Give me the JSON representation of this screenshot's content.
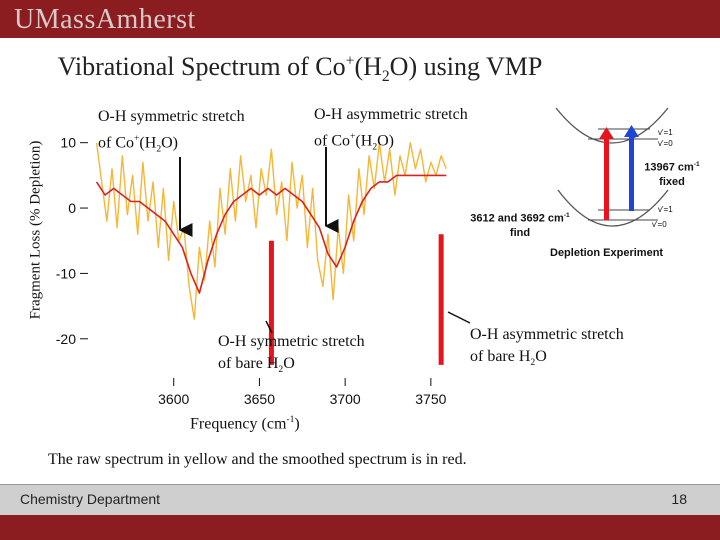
{
  "header": {
    "logo_text": "UMassAmherst"
  },
  "slide": {
    "title_pre": "Vibrational Spectrum of Co",
    "title_sup": "+",
    "title_mid": "(H",
    "title_sub": "2",
    "title_post": "O) using VMP",
    "caption": "The raw spectrum in yellow and the smoothed spectrum is in red."
  },
  "annotations": {
    "sym_complex_line1": "O-H symmetric stretch",
    "sym_complex_line2_pre": "of Co",
    "sym_complex_line2_sup": "+",
    "sym_complex_line2_mid": "(H",
    "sym_complex_line2_sub": "2",
    "sym_complex_line2_post": "O)",
    "asym_complex_line1": "O-H asymmetric stretch",
    "asym_complex_line2_pre": "of Co",
    "asym_complex_line2_sup": "+",
    "asym_complex_line2_mid": "(H",
    "asym_complex_line2_sub": "2",
    "asym_complex_line2_post": "O)",
    "sym_bare_line1": "O-H symmetric stretch",
    "sym_bare_line2_pre": "of bare H",
    "sym_bare_line2_sub": "2",
    "sym_bare_line2_post": "O",
    "asym_bare_line1": "O-H asymmetric stretch",
    "asym_bare_line2_pre": "of bare H",
    "asym_bare_line2_sub": "2",
    "asym_bare_line2_post": "O"
  },
  "diagram": {
    "level_upper_v1": "v'=1",
    "level_upper_v0": "v'=0",
    "level_lower_v1": "v'=1",
    "level_lower_v0": "v'=0",
    "photon_label_pre": "13967 cm",
    "photon_label_sup": "-1",
    "photon_label_post": "fixed",
    "ir_label_pre": "3612 and 3692 cm",
    "ir_label_sup": "-1",
    "ir_label_post": "find",
    "experiment_label": "Depletion Experiment",
    "colors": {
      "red_arrow": "#e8141b",
      "blue_arrow": "#1e46d6",
      "curve": "#555555"
    }
  },
  "chart_data": {
    "type": "line",
    "xlabel_pre": "Frequency (cm",
    "xlabel_sup": "-1",
    "xlabel_post": ")",
    "ylabel": "Fragment Loss (% Depletion)",
    "xlim": [
      3550,
      3760
    ],
    "ylim": [
      -26,
      15
    ],
    "xticks": [
      3600,
      3650,
      3700,
      3750
    ],
    "yticks": [
      10,
      0,
      -10,
      -20
    ],
    "series": [
      {
        "role": "raw",
        "color": "#f6b636",
        "x": [
          3555,
          3558,
          3561,
          3564,
          3567,
          3570,
          3573,
          3576,
          3579,
          3582,
          3585,
          3588,
          3591,
          3594,
          3597,
          3600,
          3603,
          3606,
          3609,
          3612,
          3615,
          3618,
          3621,
          3624,
          3627,
          3630,
          3633,
          3636,
          3639,
          3642,
          3645,
          3648,
          3651,
          3654,
          3657,
          3660,
          3663,
          3666,
          3669,
          3672,
          3675,
          3678,
          3681,
          3684,
          3687,
          3690,
          3693,
          3696,
          3699,
          3702,
          3705,
          3708,
          3711,
          3714,
          3717,
          3720,
          3723,
          3726,
          3729,
          3732,
          3735,
          3738,
          3741,
          3744,
          3747,
          3750,
          3753,
          3756,
          3759
        ],
        "y": [
          10,
          4,
          -2,
          6,
          -3,
          8,
          -1,
          5,
          -4,
          7,
          -2,
          4,
          -6,
          3,
          -8,
          1,
          -5,
          -3,
          -12,
          -17,
          -6,
          -11,
          -2,
          -9,
          3,
          -4,
          6,
          -2,
          8,
          1,
          5,
          -3,
          6,
          2,
          9,
          -1,
          4,
          -5,
          7,
          0,
          5,
          -6,
          3,
          -8,
          -12,
          -4,
          -14,
          -3,
          -10,
          2,
          -5,
          6,
          -1,
          8,
          3,
          10,
          4,
          9,
          2,
          8,
          5,
          10,
          6,
          9,
          4,
          7,
          5,
          8,
          6
        ]
      },
      {
        "role": "smoothed",
        "color": "#d9231f",
        "x": [
          3555,
          3560,
          3565,
          3570,
          3575,
          3580,
          3585,
          3590,
          3595,
          3600,
          3605,
          3610,
          3615,
          3620,
          3625,
          3630,
          3635,
          3640,
          3645,
          3650,
          3655,
          3660,
          3665,
          3670,
          3675,
          3680,
          3685,
          3690,
          3695,
          3700,
          3705,
          3710,
          3715,
          3720,
          3725,
          3730,
          3735,
          3740,
          3745,
          3750,
          3755,
          3759
        ],
        "y": [
          4,
          2,
          3,
          2,
          1,
          1,
          0,
          -1,
          -2,
          -4,
          -6,
          -10,
          -13,
          -8,
          -4,
          -1,
          1,
          2,
          3,
          2,
          3,
          2,
          3,
          2,
          1,
          -1,
          -3,
          -7,
          -9,
          -6,
          -2,
          1,
          3,
          4,
          4,
          5,
          5,
          5,
          5,
          5,
          5,
          5
        ]
      }
    ],
    "markers": [
      {
        "role": "bare_sym_line",
        "x": 3657,
        "y_top": -5,
        "y_bottom": -24,
        "color": "#e8141b"
      },
      {
        "role": "bare_asym_line",
        "x": 3756,
        "y_top": -4,
        "y_bottom": -24,
        "color": "#e8141b"
      }
    ]
  }
}
